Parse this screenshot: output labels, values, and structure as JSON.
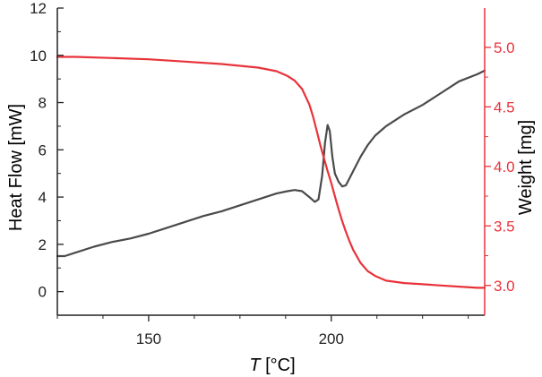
{
  "chart_data": {
    "type": "line",
    "xlabel_var": "T",
    "xlabel_unit": " [°C]",
    "ylabel_left": "Heat Flow [mW]",
    "ylabel_right": "Weight [mg]",
    "xlim": [
      125,
      242
    ],
    "ylim_left": [
      -1,
      12
    ],
    "ylim_right": [
      2.75,
      5.33
    ],
    "x_ticks": [
      150,
      200
    ],
    "x_tick_labels": [
      "150",
      "200"
    ],
    "x_minor_ticks": [
      125,
      137.5,
      162.5,
      175,
      187.5,
      212.5,
      225,
      237.5
    ],
    "left_ticks": [
      0,
      2,
      4,
      6,
      8,
      10,
      12
    ],
    "left_tick_labels": [
      "0",
      "2",
      "4",
      "6",
      "8",
      "10",
      "12"
    ],
    "left_minor_ticks": [
      -1,
      1,
      3,
      5,
      7,
      9,
      11
    ],
    "right_ticks": [
      3.0,
      3.5,
      4.0,
      4.5,
      5.0
    ],
    "right_tick_labels": [
      "3.0",
      "3.5",
      "4.0",
      "4.5",
      "5.0"
    ],
    "right_minor_ticks": [
      3.25,
      3.75,
      4.25,
      4.75
    ],
    "colors": {
      "heat_flow": "#4a4a4a",
      "weight": "#e8333a",
      "right_axis": "#e8333a",
      "left_axis": "#222222"
    },
    "series": [
      {
        "name": "Heat Flow",
        "axis": "left",
        "x": [
          125,
          127,
          130,
          135,
          140,
          145,
          150,
          155,
          160,
          165,
          170,
          175,
          180,
          185,
          188,
          190,
          192,
          194,
          195.5,
          196.5,
          197.5,
          198.3,
          199,
          199.6,
          200.3,
          201,
          202,
          203,
          204,
          205,
          206,
          208,
          210,
          212,
          215,
          220,
          225,
          230,
          235,
          240,
          242
        ],
        "y": [
          1.5,
          1.5,
          1.65,
          1.9,
          2.1,
          2.25,
          2.45,
          2.7,
          2.95,
          3.2,
          3.4,
          3.65,
          3.9,
          4.15,
          4.25,
          4.3,
          4.25,
          4.0,
          3.8,
          3.9,
          4.9,
          6.3,
          7.05,
          6.8,
          5.7,
          5.0,
          4.65,
          4.45,
          4.5,
          4.8,
          5.1,
          5.7,
          6.2,
          6.6,
          7.0,
          7.5,
          7.9,
          8.4,
          8.9,
          9.2,
          9.35
        ]
      },
      {
        "name": "Weight",
        "axis": "right",
        "x": [
          125,
          130,
          140,
          150,
          160,
          170,
          180,
          185,
          188,
          190,
          192,
          194,
          195,
          196,
          197,
          198,
          199,
          200,
          201,
          202,
          203,
          204,
          205,
          206,
          208,
          210,
          212,
          215,
          220,
          225,
          230,
          235,
          240,
          242
        ],
        "y": [
          4.92,
          4.92,
          4.91,
          4.9,
          4.88,
          4.86,
          4.83,
          4.8,
          4.76,
          4.72,
          4.65,
          4.52,
          4.42,
          4.3,
          4.18,
          4.07,
          3.96,
          3.86,
          3.75,
          3.64,
          3.54,
          3.45,
          3.37,
          3.3,
          3.19,
          3.12,
          3.08,
          3.04,
          3.02,
          3.01,
          3.0,
          2.99,
          2.98,
          2.98
        ]
      }
    ]
  }
}
